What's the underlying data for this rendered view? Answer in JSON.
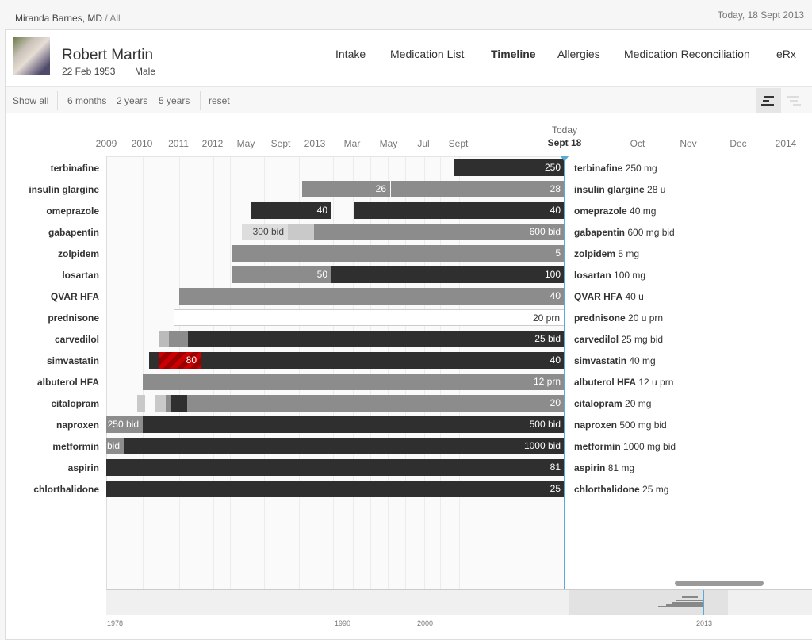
{
  "breadcrumb": {
    "doctor": "Miranda Barnes, MD",
    "sep": " / ",
    "scope": "All"
  },
  "today_top": "Today, 18 Sept  2013",
  "patient": {
    "name": "Robert Martin",
    "dob": "22 Feb 1953",
    "sex": "Male"
  },
  "nav": [
    {
      "label": "Intake"
    },
    {
      "label": "Medication List"
    },
    {
      "label": "Timeline",
      "active": true
    },
    {
      "label": "Allergies"
    },
    {
      "label": "Medication Reconciliation"
    },
    {
      "label": "eRx"
    }
  ],
  "toolbar": {
    "show_all": "Show all",
    "m6": "6 months",
    "y2": "2 years",
    "y5": "5 years",
    "reset": "reset",
    "view_icons": [
      "gantt-view-icon",
      "list-view-icon"
    ]
  },
  "axis": {
    "ticks": [
      "2009",
      "2010",
      "2011",
      "2012",
      "May",
      "Sept",
      "2013",
      "Mar",
      "May",
      "Jul",
      "Sept",
      "Oct",
      "Nov",
      "Dec",
      "2014"
    ],
    "today_label": "Today",
    "today_date": "Sept 18"
  },
  "colors": {
    "now_line": "#5aaad8",
    "active_dose": "#2f2f2f",
    "previous_dose": "#8c8c8c",
    "warning": "#cc0000"
  },
  "medications": [
    {
      "name": "terbinafine",
      "current": "250 mg",
      "segments": [
        {
          "tone": "dark",
          "label": "250"
        }
      ]
    },
    {
      "name": "insulin glargine",
      "current": "28 u",
      "segments": [
        {
          "tone": "mid",
          "label": "26"
        },
        {
          "tone": "mid",
          "label": "28"
        }
      ]
    },
    {
      "name": "omeprazole",
      "current": "40 mg",
      "segments": [
        {
          "tone": "dark",
          "label": "40"
        },
        {
          "tone": "dark",
          "label": "40"
        }
      ]
    },
    {
      "name": "gabapentin",
      "current": "600 mg bid",
      "segments": [
        {
          "tone": "light",
          "label": "300 bid"
        },
        {
          "tone": "light2",
          "label": ""
        },
        {
          "tone": "mid",
          "label": "600 bid"
        }
      ]
    },
    {
      "name": "zolpidem",
      "current": "5 mg",
      "segments": [
        {
          "tone": "mid",
          "label": "5"
        }
      ]
    },
    {
      "name": "losartan",
      "current": "100 mg",
      "segments": [
        {
          "tone": "mid",
          "label": "50"
        },
        {
          "tone": "dark",
          "label": "100"
        }
      ]
    },
    {
      "name": "QVAR HFA",
      "current": "40 u",
      "segments": [
        {
          "tone": "mid",
          "label": "40"
        }
      ]
    },
    {
      "name": "prednisone",
      "current": "20 u prn",
      "segments": [
        {
          "tone": "outline",
          "label": "20 prn"
        }
      ]
    },
    {
      "name": "carvedilol",
      "current": " 25 mg bid",
      "segments": [
        {
          "tone": "light3",
          "label": ""
        },
        {
          "tone": "mid",
          "label": ""
        },
        {
          "tone": "dark",
          "label": "25 bid"
        }
      ]
    },
    {
      "name": "simvastatin",
      "current": "40 mg",
      "segments": [
        {
          "tone": "dark",
          "label": ""
        },
        {
          "tone": "red",
          "label": "80"
        },
        {
          "tone": "dark",
          "label": "40"
        }
      ]
    },
    {
      "name": "albuterol HFA",
      "current": "12 u prn",
      "segments": [
        {
          "tone": "mid",
          "label": "12 prn"
        }
      ]
    },
    {
      "name": "citalopram",
      "current": "20 mg",
      "segments": [
        {
          "tone": "light2",
          "label": ""
        },
        {
          "tone": "light2",
          "label": ""
        },
        {
          "tone": "mid",
          "label": ""
        },
        {
          "tone": "dark",
          "label": ""
        },
        {
          "tone": "mid",
          "label": "20"
        }
      ]
    },
    {
      "name": "naproxen",
      "current": "500 mg bid",
      "segments": [
        {
          "tone": "mid",
          "label": "250 bid"
        },
        {
          "tone": "dark",
          "label": "500 bid"
        }
      ]
    },
    {
      "name": "metformin",
      "current": "1000 mg bid",
      "segments": [
        {
          "tone": "mid",
          "label": "bid"
        },
        {
          "tone": "dark",
          "label": "1000 bid"
        }
      ]
    },
    {
      "name": "aspirin",
      "current": "81 mg",
      "segments": [
        {
          "tone": "dark",
          "label": "81"
        }
      ]
    },
    {
      "name": "chlorthalidone",
      "current": "25 mg",
      "segments": [
        {
          "tone": "dark",
          "label": "25"
        }
      ]
    }
  ],
  "overview": {
    "ticks": [
      "1978",
      "1990",
      "2000",
      "2013"
    ]
  }
}
